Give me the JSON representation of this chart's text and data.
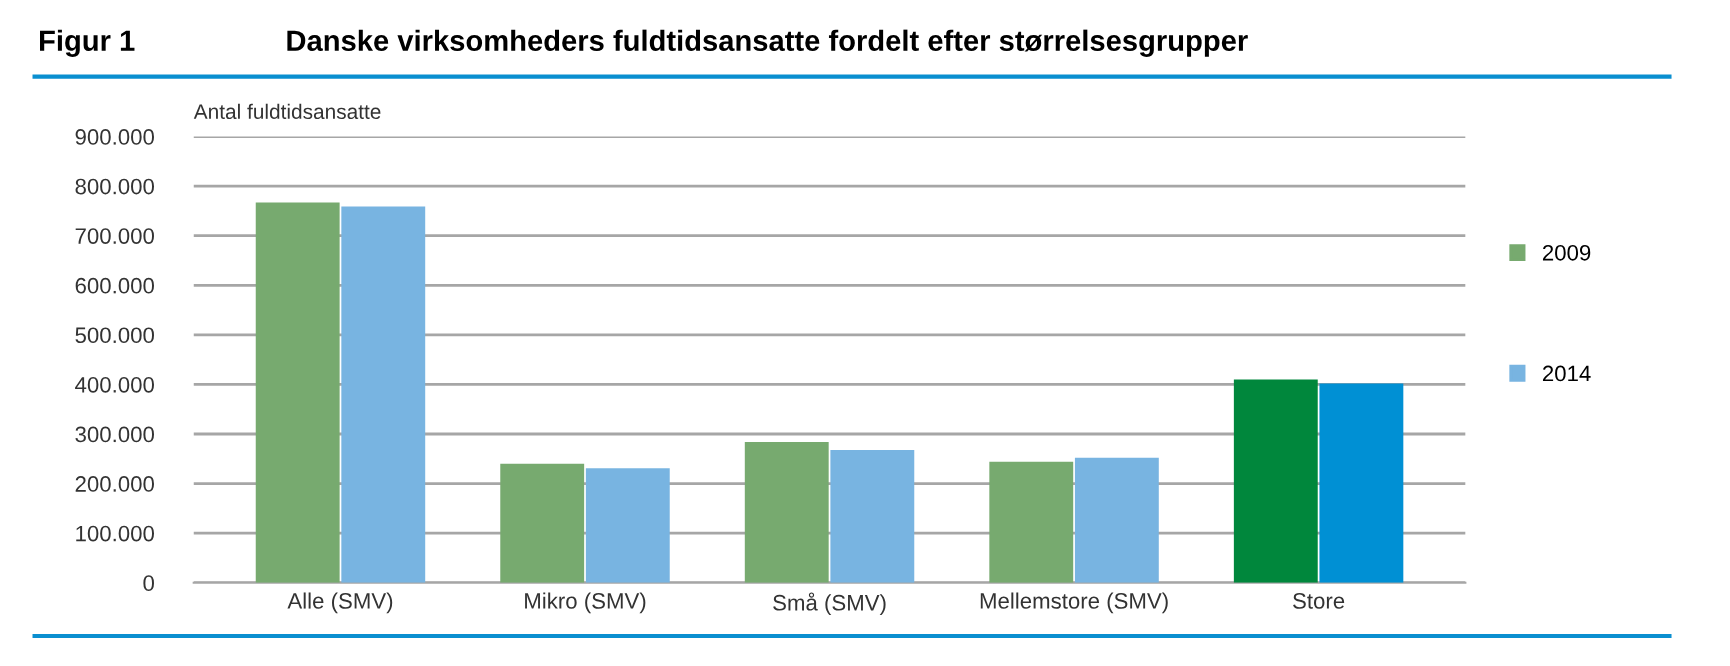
{
  "chart_data": {
    "type": "bar",
    "title": "Danske virksomheders fuldtidsansatte fordelt efter størrelsesgrupper",
    "annotations": [
      "Figur 1"
    ],
    "ylabel": "Antal fuldtidsansatte",
    "categories": [
      "Alle (SMV)",
      "Mikro (SMV)",
      "Små (SMV)",
      "Mellemstore (SMV)",
      "Store"
    ],
    "series": [
      {
        "name": "2009",
        "color": "#77aa6f",
        "colors": [
          "#77aa6f",
          "#77aa6f",
          "#77aa6f",
          "#77aa6f",
          "#00873c"
        ],
        "values": [
          767000,
          240000,
          284000,
          244000,
          410000
        ]
      },
      {
        "name": "2014",
        "color": "#78b4e1",
        "colors": [
          "#78b4e1",
          "#78b4e1",
          "#78b4e1",
          "#78b4e1",
          "#0090d4"
        ],
        "values": [
          759000,
          231000,
          268000,
          252000,
          402000
        ]
      }
    ],
    "ylim": [
      0,
      900000
    ],
    "yticks": [
      0,
      {
        "value": 100000,
        "label": "100.000"
      },
      {
        "value": 200000,
        "label": "200.000"
      },
      {
        "value": 300000,
        "label": "300.000"
      },
      {
        "value": 400000,
        "label": "400.000"
      },
      {
        "value": 500000,
        "label": "500.000"
      },
      {
        "value": 600000,
        "label": "600.000"
      },
      {
        "value": 700000,
        "label": "700.000"
      },
      {
        "value": 800000,
        "label": "800.000"
      },
      {
        "value": 900000,
        "label": "900.000"
      }
    ],
    "grid": "y",
    "legend": "right"
  }
}
